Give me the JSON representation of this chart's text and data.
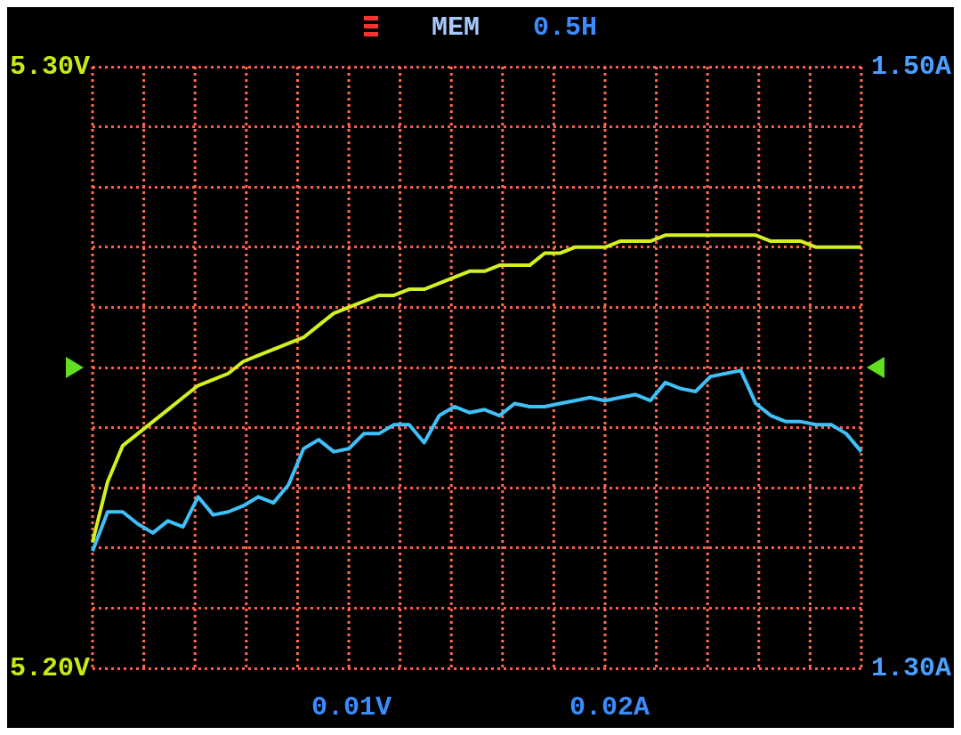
{
  "chart_data": {
    "type": "line",
    "annotations": [
      "MEM",
      "0.5H",
      "0.01V",
      "0.02A"
    ],
    "categories": [
      null,
      null,
      null,
      null,
      null,
      null,
      null,
      null,
      null,
      null,
      null,
      null,
      null,
      null,
      null,
      null,
      null,
      null,
      null,
      null,
      null,
      null,
      null,
      null,
      null,
      null,
      null,
      null,
      null,
      null,
      null,
      null,
      null,
      null,
      null,
      null,
      null,
      null,
      null,
      null,
      null,
      null,
      null,
      null,
      null,
      null,
      null,
      null,
      null,
      null,
      null,
      null
    ],
    "series": [
      {
        "color": "#d4f020",
        "values": [
          5.221,
          5.231,
          5.237,
          5.239,
          5.241,
          5.243,
          5.245,
          5.247,
          5.248,
          5.249,
          5.251,
          5.252,
          5.253,
          5.254,
          5.255,
          5.257,
          5.259,
          5.26,
          5.261,
          5.262,
          5.262,
          5.263,
          5.263,
          5.264,
          5.265,
          5.266,
          5.266,
          5.267,
          5.267,
          5.267,
          5.269,
          5.269,
          5.27,
          5.27,
          5.27,
          5.271,
          5.271,
          5.271,
          5.272,
          5.272,
          5.272,
          5.272,
          5.272,
          5.272,
          5.272,
          5.271,
          5.271,
          5.271,
          5.27,
          5.27,
          5.27,
          5.27
        ]
      },
      {
        "color": "#40c0f8",
        "axis": "y2",
        "values": [
          1.339,
          1.352,
          1.352,
          1.348,
          1.345,
          1.349,
          1.347,
          1.357,
          1.351,
          1.352,
          1.354,
          1.357,
          1.355,
          1.361,
          1.373,
          1.376,
          1.372,
          1.373,
          1.378,
          1.378,
          1.381,
          1.381,
          1.375,
          1.384,
          1.387,
          1.385,
          1.386,
          1.384,
          1.388,
          1.387,
          1.387,
          1.388,
          1.389,
          1.39,
          1.389,
          1.39,
          1.391,
          1.389,
          1.395,
          1.393,
          1.392,
          1.397,
          1.398,
          1.399,
          1.388,
          1.384,
          1.382,
          1.382,
          1.381,
          1.381,
          1.378,
          1.372
        ]
      }
    ],
    "ylim": [
      5.2,
      5.3
    ],
    "yticks": [
      {
        "value": 5.2,
        "label": "5.20V"
      },
      {
        "value": 5.21,
        "label": null
      },
      {
        "value": 5.22,
        "label": null
      },
      {
        "value": 5.23,
        "label": null
      },
      {
        "value": 5.24,
        "label": null
      },
      {
        "value": 5.25,
        "label": null
      },
      {
        "value": 5.26,
        "label": null
      },
      {
        "value": 5.27,
        "label": null
      },
      {
        "value": 5.28,
        "label": null
      },
      {
        "value": 5.29,
        "label": null
      },
      {
        "value": 5.3,
        "label": "5.30V"
      }
    ],
    "y2lim": [
      1.3,
      1.5
    ],
    "y2ticks": [
      {
        "value": 1.3,
        "label": "1.30A"
      },
      {
        "value": 1.5,
        "label": "1.50A"
      }
    ],
    "grid": true,
    "tick_labels": "y",
    "marker": "none",
    "line_style": "solid"
  }
}
